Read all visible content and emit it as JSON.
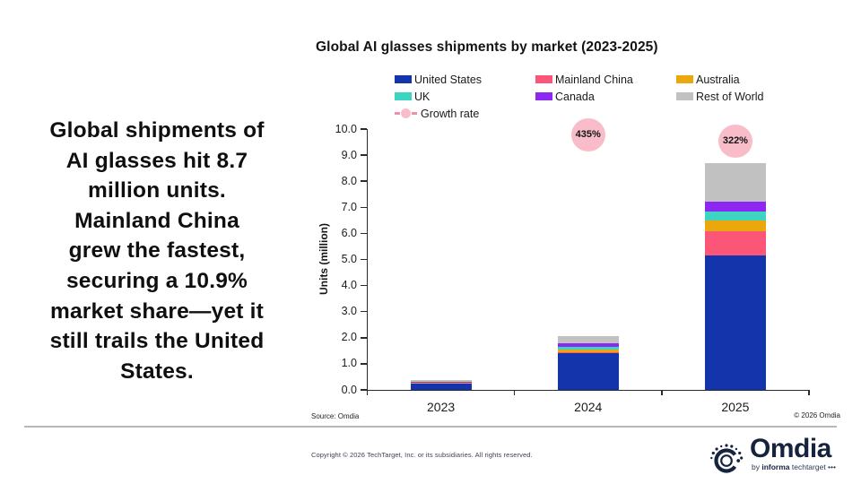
{
  "headline": {
    "text": "Global shipments of\nAI glasses hit 8.7\nmillion units.\nMainland China\ngrew the fastest,\nsecuring a 10.9%\nmarket share—yet it\nstill trails the United\nStates."
  },
  "chart": {
    "title": "Global AI glasses shipments by market (2023-2025)",
    "source": "Source: Omdia",
    "copyright": "© 2026 Omdia"
  },
  "chart_data": {
    "type": "bar",
    "stacked": true,
    "title": "Global AI glasses shipments by market (2023-2025)",
    "categories": [
      "2023",
      "2024",
      "2025"
    ],
    "series": [
      {
        "name": "United States",
        "color": "#1334ab",
        "values": [
          0.28,
          1.4,
          5.14
        ]
      },
      {
        "name": "Mainland China",
        "color": "#fb5578",
        "values": [
          0.005,
          0.03,
          0.95
        ]
      },
      {
        "name": "Australia",
        "color": "#eaa80d",
        "values": [
          0.005,
          0.1,
          0.42
        ]
      },
      {
        "name": "UK",
        "color": "#3cd5c1",
        "values": [
          0.01,
          0.12,
          0.34
        ]
      },
      {
        "name": "Canada",
        "color": "#8c28f2",
        "values": [
          0.01,
          0.12,
          0.38
        ]
      },
      {
        "name": "Rest of World",
        "color": "#c1c1c1",
        "values": [
          0.07,
          0.29,
          1.46
        ]
      }
    ],
    "totals": [
      0.38,
      2.06,
      8.69
    ],
    "growth_rate": {
      "name": "Growth rate",
      "labels": [
        null,
        "435%",
        "322%"
      ],
      "bubble_color": "#f9bdc9"
    },
    "xlabel": "",
    "ylabel": "Units (million)",
    "ylim": [
      0,
      10
    ],
    "ytick_step": 1.0,
    "ytick_format": "one_decimal",
    "grid": false,
    "legend_position": "top"
  },
  "footer": {
    "copyright": "Copyright © 2026 TechTarget, Inc. or its subsidiaries. All rights reserved."
  },
  "logo": {
    "wordmark": "Omdia",
    "tagline_by": "by ",
    "tagline_informa": "informa",
    "tagline_techtarget": " techtarget",
    "tagline_dots": " •••"
  }
}
